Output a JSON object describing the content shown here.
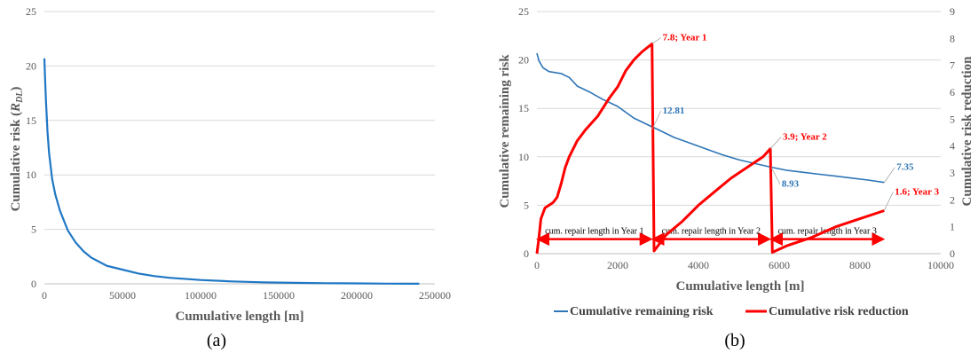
{
  "chart_data": [
    {
      "panel_label": "(a)",
      "type": "line",
      "xlabel": "Cumulative length [m]",
      "ylabel_prefix": "Cumulative risk (",
      "ylabel_symbol": "R",
      "ylabel_sub": "DL",
      "ylabel_suffix": ")",
      "xlim": [
        0,
        250000
      ],
      "ylim": [
        0,
        25
      ],
      "xticks": [
        0,
        50000,
        100000,
        150000,
        200000,
        250000
      ],
      "yticks": [
        0,
        5,
        10,
        15,
        20,
        25
      ],
      "grid": true,
      "series": [
        {
          "color": "#1f77c4",
          "x": [
            0,
            500,
            1000,
            2000,
            3000,
            5000,
            7000,
            10000,
            15000,
            20000,
            25000,
            30000,
            40000,
            50000,
            60000,
            70000,
            80000,
            100000,
            120000,
            140000,
            160000,
            180000,
            200000,
            220000,
            240000
          ],
          "y": [
            20.7,
            18.6,
            16.8,
            14.0,
            12.0,
            9.6,
            8.2,
            6.7,
            4.9,
            3.8,
            3.0,
            2.4,
            1.65,
            1.3,
            0.95,
            0.72,
            0.55,
            0.35,
            0.22,
            0.14,
            0.09,
            0.06,
            0.04,
            0.02,
            0.01
          ]
        }
      ]
    },
    {
      "panel_label": "(b)",
      "type": "line",
      "xlabel": "Cumulative length [m]",
      "ylabel": "Cumulative remaining risk",
      "y2label": "Cumulative risk reduction",
      "xlim": [
        0,
        10000
      ],
      "ylim": [
        0,
        25
      ],
      "y2lim": [
        0,
        9
      ],
      "xticks": [
        0,
        2000,
        4000,
        6000,
        8000,
        10000
      ],
      "yticks": [
        0,
        5,
        10,
        15,
        20,
        25
      ],
      "y2ticks": [
        0,
        1,
        2,
        3,
        4,
        5,
        6,
        7,
        8,
        9
      ],
      "grid": true,
      "legend_position": "bottom",
      "series": [
        {
          "name": "Cumulative remaining risk",
          "axis": "left",
          "color": "#2e75b6",
          "x": [
            0,
            50,
            150,
            300,
            600,
            800,
            1000,
            1300,
            1600,
            2000,
            2400,
            2800,
            3000,
            3400,
            3800,
            4200,
            4600,
            5000,
            5400,
            5800,
            6200,
            6600,
            7000,
            7400,
            7800,
            8200,
            8600
          ],
          "y": [
            20.7,
            19.9,
            19.2,
            18.8,
            18.6,
            18.2,
            17.3,
            16.7,
            16.0,
            15.2,
            14.0,
            13.2,
            12.81,
            12.0,
            11.4,
            10.8,
            10.2,
            9.7,
            9.3,
            8.93,
            8.6,
            8.4,
            8.2,
            8.0,
            7.8,
            7.6,
            7.35
          ]
        },
        {
          "name": "Cumulative risk reduction",
          "axis": "right",
          "color": "#ff0000",
          "x": [
            0,
            50,
            100,
            200,
            400,
            500,
            600,
            700,
            800,
            1000,
            1200,
            1500,
            1800,
            2000,
            2200,
            2400,
            2600,
            2850,
            2850,
            2900,
            3200,
            3600,
            4000,
            4400,
            4800,
            5200,
            5600,
            5780,
            5780,
            5830,
            6200,
            6800,
            7400,
            8000,
            8600
          ],
          "y": [
            0,
            0.6,
            1.3,
            1.7,
            1.9,
            2.1,
            2.6,
            3.2,
            3.6,
            4.2,
            4.6,
            5.1,
            5.8,
            6.2,
            6.8,
            7.2,
            7.5,
            7.8,
            7.8,
            0.1,
            0.7,
            1.2,
            1.8,
            2.3,
            2.8,
            3.2,
            3.6,
            3.9,
            3.9,
            0.05,
            0.3,
            0.6,
            1.0,
            1.3,
            1.6
          ]
        }
      ],
      "annotations": [
        {
          "text": "7.8; Year 1",
          "x": 2850,
          "y2": 7.8,
          "color": "#ff0000"
        },
        {
          "text": "12.81",
          "x": 2850,
          "y": 12.81,
          "color": "#2e75b6"
        },
        {
          "text": "3.9; Year 2",
          "x": 5780,
          "y2": 3.9,
          "color": "#ff0000"
        },
        {
          "text": "8.93",
          "x": 5800,
          "y": 8.93,
          "color": "#2e75b6"
        },
        {
          "text": "7.35",
          "x": 8600,
          "y": 7.35,
          "color": "#2e75b6"
        },
        {
          "text": "1.6; Year 3",
          "x": 8600,
          "y2": 1.6,
          "color": "#ff0000"
        }
      ],
      "ranges": [
        {
          "text": "cum. repair length in Year 1",
          "x0": 0,
          "x1": 2850
        },
        {
          "text": "cum. repair length in Year 2",
          "x0": 2850,
          "x1": 5780
        },
        {
          "text": "cum. repair length in Year 3",
          "x0": 5780,
          "x1": 8600
        }
      ]
    }
  ]
}
